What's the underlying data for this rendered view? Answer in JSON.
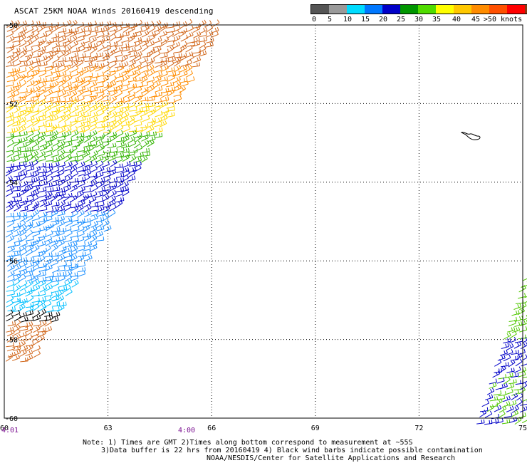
{
  "title": "ASCAT 25KM NOAA Winds 20160419 descending",
  "legend": {
    "colors": [
      "#555555",
      "#9a9a9a",
      "#00dcff",
      "#0078ff",
      "#0000c8",
      "#009600",
      "#50dc00",
      "#ffff00",
      "#ffc800",
      "#ff8c00",
      "#ff5000",
      "#ff0000",
      "#8b3a14",
      "#c8783c",
      "#ff00ff",
      "#b400ff",
      "#6e00b4"
    ],
    "labels": [
      "0",
      "5",
      "10",
      "15",
      "20",
      "25",
      "30",
      "35",
      "40",
      "45",
      ">50 knots"
    ]
  },
  "map": {
    "lon_ticks": [
      "60",
      "63",
      "66",
      "69",
      "72",
      "75"
    ],
    "lat_ticks": [
      "-50",
      "-52",
      "-54",
      "-56",
      "-58",
      "-60"
    ],
    "lon_range": [
      60,
      75
    ],
    "lat_range": [
      -60,
      -50
    ]
  },
  "pass_times": [
    "4:01",
    "4:00"
  ],
  "notes": {
    "line1": "Note: 1) Times are GMT 2)Times along bottom correspond to measurement at ~55S",
    "line2": "3)Data buffer is 22 hrs from 20160419 4) Black wind barbs indicate possible contamination",
    "line3": "NOAA/NESDIS/Center for Satellite Applications and Research"
  }
}
